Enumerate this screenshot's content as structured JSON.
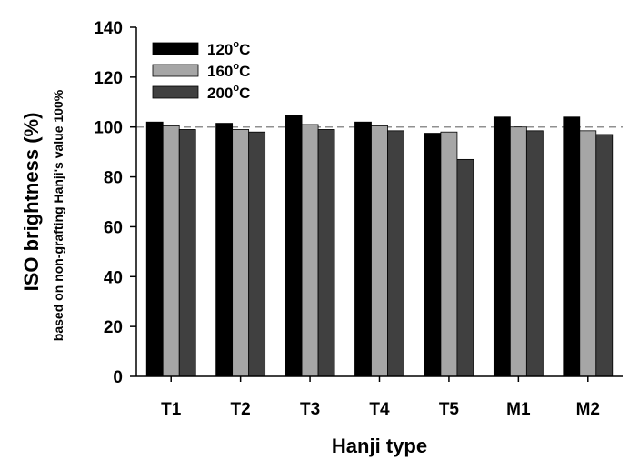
{
  "chart_data": {
    "type": "bar",
    "categories": [
      "T1",
      "T2",
      "T3",
      "T4",
      "T5",
      "M1",
      "M2"
    ],
    "series": [
      {
        "name_main": "120",
        "name_sup": "o",
        "name_unit": "C",
        "color": "#000000",
        "values": [
          102,
          101.5,
          104.5,
          102,
          97.5,
          104,
          104
        ]
      },
      {
        "name_main": "160",
        "name_sup": "o",
        "name_unit": "C",
        "color": "#a6a6a6",
        "values": [
          100.5,
          99,
          101,
          100.5,
          98,
          100,
          98.5
        ]
      },
      {
        "name_main": "200",
        "name_sup": "o",
        "name_unit": "C",
        "color": "#404040",
        "values": [
          99,
          98,
          99,
          98.5,
          87,
          98.5,
          97
        ]
      }
    ],
    "ylim": [
      0,
      140
    ],
    "yticks": [
      "0",
      "20",
      "40",
      "60",
      "80",
      "100",
      "120",
      "140"
    ],
    "reference_line": 100,
    "xlabel": "Hanji type",
    "ylabel": "ISO brightness (%)",
    "ylabel_sub": "based on non-grafting Hanji's value 100%",
    "legend_position": "top-left"
  }
}
